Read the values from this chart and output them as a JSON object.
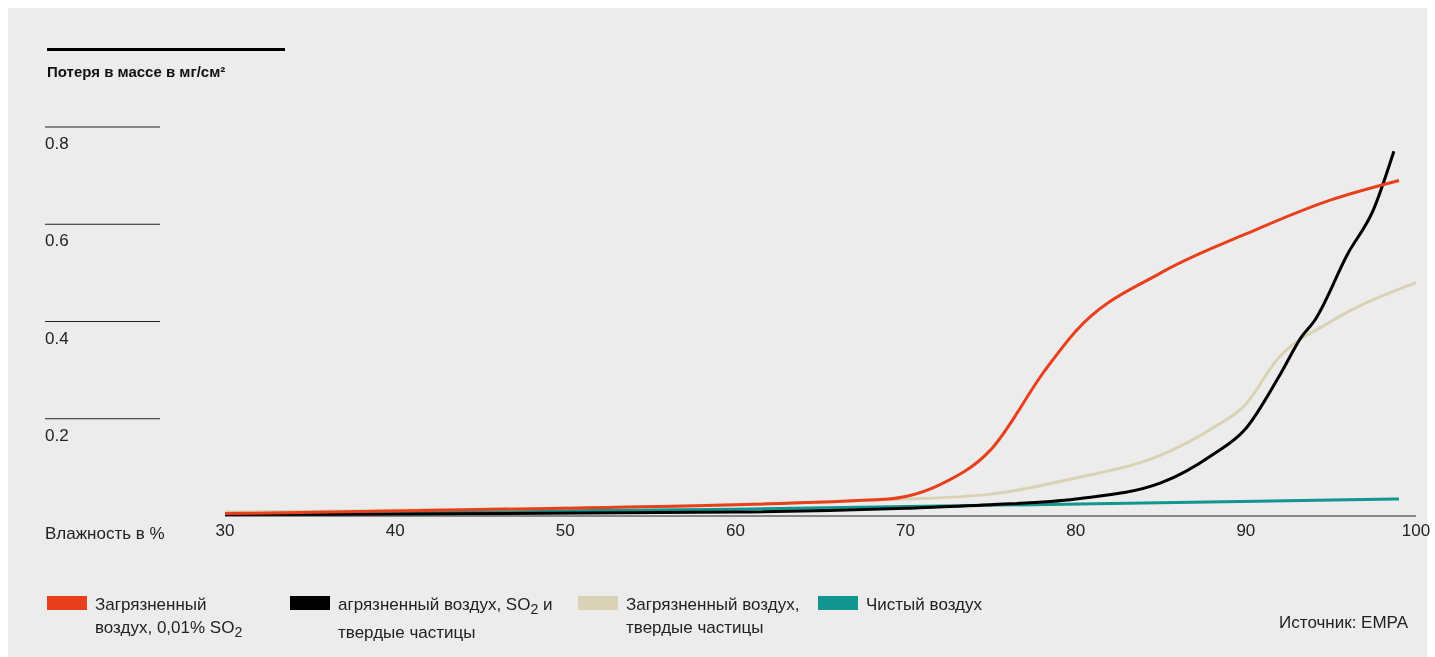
{
  "chart_data": {
    "type": "line",
    "title": "Потеря в массе в мг/см²",
    "xlabel": "Влажность в %",
    "xlim": [
      30,
      100
    ],
    "xticks": [
      30,
      40,
      50,
      60,
      70,
      80,
      90,
      100
    ],
    "ylim": [
      0,
      0.8
    ],
    "yticks": [
      0.2,
      0.4,
      0.6,
      0.8
    ],
    "grid": false,
    "legend": "bottom",
    "marker": "none",
    "line_style": "solid",
    "annotations": [
      "Источник: EMPA"
    ],
    "series": [
      {
        "name": "Загрязненный воздух, 0,01% SO$_{2}$",
        "color": "#e8401c",
        "x": [
          30,
          50,
          69,
          70,
          72,
          75,
          78.2,
          80,
          85,
          90,
          95,
          99
        ],
        "values": [
          0.005,
          0.016,
          0.035,
          0.04,
          0.064,
          0.136,
          0.3,
          0.38,
          0.5,
          0.58,
          0.65,
          0.69
        ]
      },
      {
        "name": "агрязненный воздух, SO$_{2}$ и твердые частицы",
        "color": "#000000",
        "x": [
          30,
          60,
          70,
          75,
          80,
          85,
          88,
          90,
          92,
          93.3,
          94,
          96,
          97.5,
          98.7
        ],
        "values": [
          0.002,
          0.008,
          0.016,
          0.023,
          0.035,
          0.068,
          0.125,
          0.18,
          0.29,
          0.37,
          0.4,
          0.54,
          0.63,
          0.75
        ]
      },
      {
        "name": "Загрязненный воздух, твердые частицы",
        "color": "#d8d3b4",
        "x": [
          30,
          70,
          75,
          80,
          85,
          88,
          90,
          91.8,
          95,
          100
        ],
        "values": [
          0.008,
          0.035,
          0.045,
          0.078,
          0.125,
          0.18,
          0.23,
          0.32,
          0.4,
          0.48
        ]
      },
      {
        "name": "Чистый воздух",
        "color": "#129690",
        "x": [
          30,
          60,
          99
        ],
        "values": [
          0.005,
          0.014,
          0.035
        ]
      }
    ]
  }
}
